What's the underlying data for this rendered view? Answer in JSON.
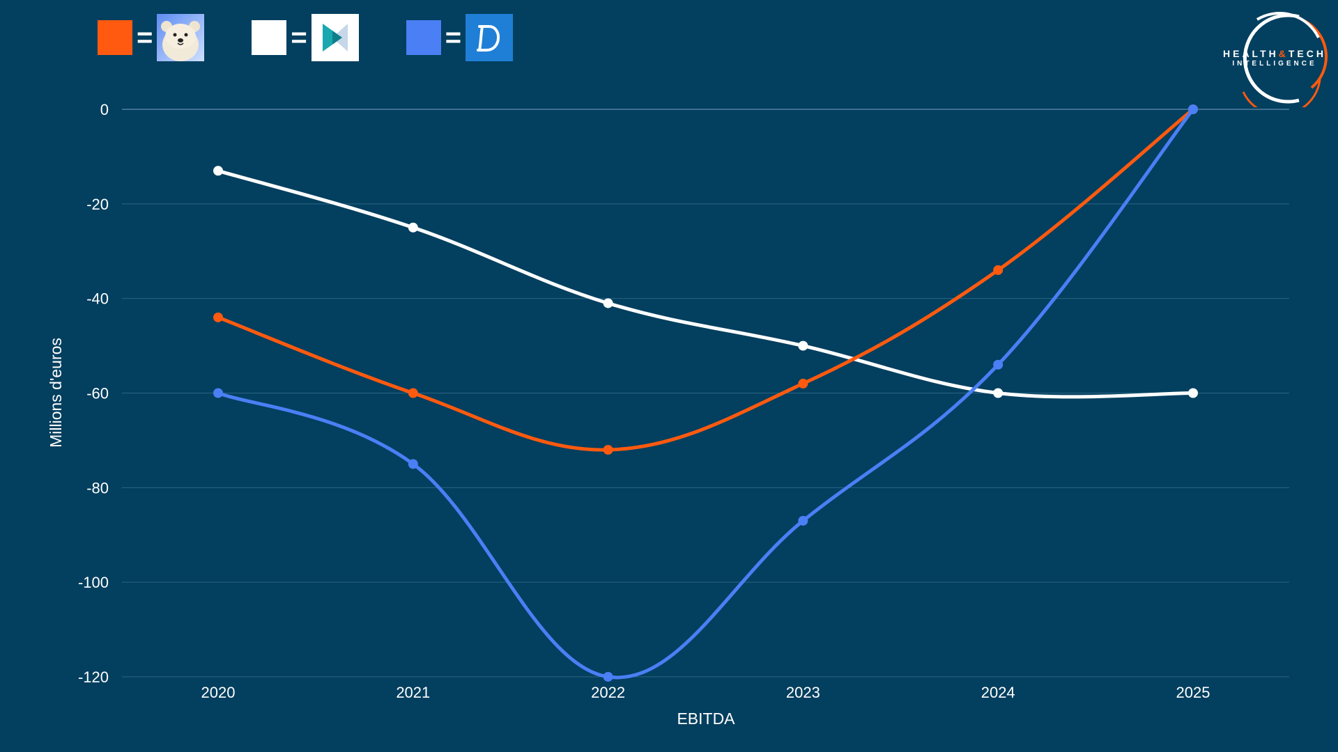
{
  "legend": [
    {
      "series": "orange",
      "color": "#ff5a0f",
      "logo": "polar-bear-logo"
    },
    {
      "series": "white",
      "color": "#ffffff",
      "logo": "teal-play-logo"
    },
    {
      "series": "blue",
      "color": "#4a7ff5",
      "logo": "d-letter-logo"
    }
  ],
  "legend_equals": "=",
  "brand": {
    "line1_a": "HEALTH",
    "line1_amp": "&",
    "line1_b": "TECH",
    "line2": "INTELLIGENCE"
  },
  "chart_data": {
    "type": "line",
    "x": [
      "2020",
      "2021",
      "2022",
      "2023",
      "2024",
      "2025"
    ],
    "series": [
      {
        "color": "#ffffff",
        "values": [
          -13,
          -25,
          -41,
          -50,
          -60,
          -60
        ]
      },
      {
        "color": "#ff5a0f",
        "values": [
          -44,
          -60,
          -72,
          -58,
          -34,
          0
        ]
      },
      {
        "color": "#4a7ff5",
        "values": [
          -60,
          -75,
          -120,
          -87,
          -54,
          0
        ]
      }
    ],
    "xlabel": "EBITDA",
    "ylabel": "Millions d'euros",
    "ylim": [
      -120,
      0
    ],
    "yticks": [
      "0",
      "-20",
      "-40",
      "-60",
      "-80",
      "-100",
      "-120"
    ],
    "ytick_values": [
      0,
      -20,
      -40,
      -60,
      -80,
      -100,
      -120
    ],
    "grid": true,
    "legend_position": "top-left"
  }
}
